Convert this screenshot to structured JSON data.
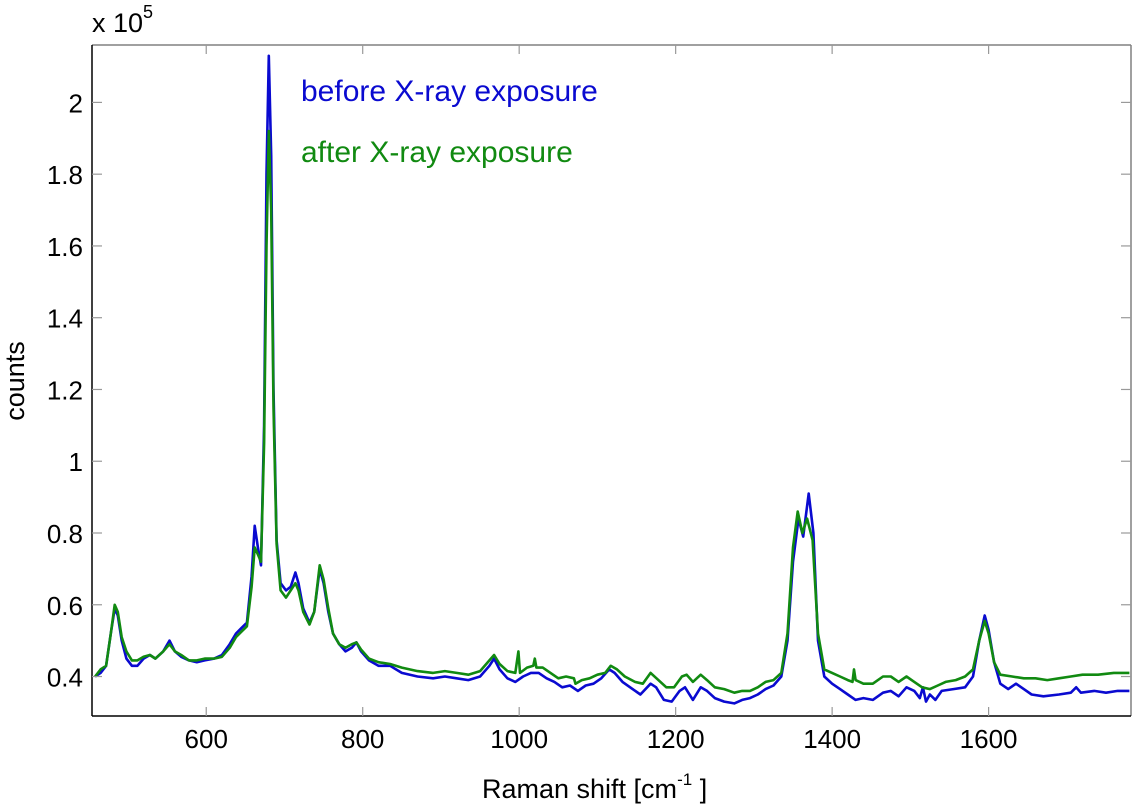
{
  "chart_data": {
    "type": "line",
    "title": "",
    "xlabel": "Raman shift [cm^-1 ]",
    "ylabel": "counts",
    "y_multiplier": "x 10^5",
    "xlim": [
      454,
      1782
    ],
    "ylim": [
      0.29,
      2.16
    ],
    "x_ticks": [
      600,
      800,
      1000,
      1200,
      1400,
      1600
    ],
    "y_ticks": [
      0.4,
      0.6,
      0.8,
      1,
      1.2,
      1.4,
      1.6,
      1.8,
      2
    ],
    "y_tick_labels": [
      "0.4",
      "0.6",
      "0.8",
      "1",
      "1.2",
      "1.4",
      "1.6",
      "1.8",
      "2"
    ],
    "x_tick_labels": [
      "600",
      "800",
      "1000",
      "1200",
      "1400",
      "1600"
    ],
    "grid": false,
    "legend_position": "upper-left-inside",
    "series": [
      {
        "name": "before X-ray exposure",
        "color": "#0a0ad0",
        "points": [
          [
            458,
            0.4
          ],
          [
            465,
            0.41
          ],
          [
            472,
            0.43
          ],
          [
            478,
            0.52
          ],
          [
            483,
            0.59
          ],
          [
            487,
            0.57
          ],
          [
            492,
            0.5
          ],
          [
            498,
            0.45
          ],
          [
            505,
            0.43
          ],
          [
            512,
            0.43
          ],
          [
            520,
            0.45
          ],
          [
            528,
            0.46
          ],
          [
            535,
            0.45
          ],
          [
            545,
            0.47
          ],
          [
            553,
            0.5
          ],
          [
            560,
            0.47
          ],
          [
            568,
            0.455
          ],
          [
            578,
            0.445
          ],
          [
            588,
            0.44
          ],
          [
            598,
            0.445
          ],
          [
            610,
            0.45
          ],
          [
            620,
            0.46
          ],
          [
            630,
            0.49
          ],
          [
            638,
            0.52
          ],
          [
            645,
            0.535
          ],
          [
            652,
            0.55
          ],
          [
            658,
            0.68
          ],
          [
            662,
            0.82
          ],
          [
            666,
            0.76
          ],
          [
            670,
            0.71
          ],
          [
            674,
            1.1
          ],
          [
            677,
            1.8
          ],
          [
            680,
            2.13
          ],
          [
            683,
            1.85
          ],
          [
            686,
            1.2
          ],
          [
            690,
            0.78
          ],
          [
            695,
            0.66
          ],
          [
            702,
            0.64
          ],
          [
            708,
            0.65
          ],
          [
            714,
            0.69
          ],
          [
            718,
            0.66
          ],
          [
            724,
            0.59
          ],
          [
            732,
            0.55
          ],
          [
            738,
            0.58
          ],
          [
            745,
            0.7
          ],
          [
            750,
            0.66
          ],
          [
            756,
            0.58
          ],
          [
            762,
            0.52
          ],
          [
            770,
            0.49
          ],
          [
            778,
            0.47
          ],
          [
            786,
            0.48
          ],
          [
            792,
            0.495
          ],
          [
            798,
            0.47
          ],
          [
            808,
            0.445
          ],
          [
            820,
            0.43
          ],
          [
            835,
            0.43
          ],
          [
            850,
            0.41
          ],
          [
            870,
            0.4
          ],
          [
            890,
            0.395
          ],
          [
            905,
            0.4
          ],
          [
            920,
            0.395
          ],
          [
            935,
            0.39
          ],
          [
            950,
            0.4
          ],
          [
            962,
            0.43
          ],
          [
            968,
            0.45
          ],
          [
            975,
            0.42
          ],
          [
            985,
            0.395
          ],
          [
            995,
            0.385
          ],
          [
            1005,
            0.4
          ],
          [
            1015,
            0.41
          ],
          [
            1025,
            0.41
          ],
          [
            1035,
            0.395
          ],
          [
            1045,
            0.385
          ],
          [
            1055,
            0.37
          ],
          [
            1065,
            0.375
          ],
          [
            1075,
            0.36
          ],
          [
            1085,
            0.375
          ],
          [
            1095,
            0.38
          ],
          [
            1105,
            0.395
          ],
          [
            1115,
            0.42
          ],
          [
            1122,
            0.41
          ],
          [
            1132,
            0.385
          ],
          [
            1145,
            0.365
          ],
          [
            1155,
            0.35
          ],
          [
            1168,
            0.38
          ],
          [
            1175,
            0.37
          ],
          [
            1185,
            0.335
          ],
          [
            1195,
            0.33
          ],
          [
            1205,
            0.36
          ],
          [
            1212,
            0.37
          ],
          [
            1222,
            0.335
          ],
          [
            1232,
            0.37
          ],
          [
            1240,
            0.36
          ],
          [
            1250,
            0.34
          ],
          [
            1262,
            0.33
          ],
          [
            1275,
            0.325
          ],
          [
            1285,
            0.335
          ],
          [
            1295,
            0.34
          ],
          [
            1305,
            0.35
          ],
          [
            1315,
            0.365
          ],
          [
            1325,
            0.375
          ],
          [
            1335,
            0.4
          ],
          [
            1343,
            0.5
          ],
          [
            1350,
            0.72
          ],
          [
            1357,
            0.84
          ],
          [
            1363,
            0.79
          ],
          [
            1370,
            0.91
          ],
          [
            1376,
            0.8
          ],
          [
            1382,
            0.5
          ],
          [
            1390,
            0.4
          ],
          [
            1400,
            0.38
          ],
          [
            1410,
            0.365
          ],
          [
            1420,
            0.35
          ],
          [
            1430,
            0.335
          ],
          [
            1440,
            0.34
          ],
          [
            1452,
            0.335
          ],
          [
            1465,
            0.355
          ],
          [
            1475,
            0.36
          ],
          [
            1485,
            0.345
          ],
          [
            1495,
            0.37
          ],
          [
            1505,
            0.36
          ],
          [
            1512,
            0.34
          ],
          [
            1516,
            0.37
          ],
          [
            1520,
            0.33
          ],
          [
            1525,
            0.35
          ],
          [
            1532,
            0.335
          ],
          [
            1540,
            0.36
          ],
          [
            1555,
            0.365
          ],
          [
            1570,
            0.37
          ],
          [
            1580,
            0.4
          ],
          [
            1588,
            0.5
          ],
          [
            1595,
            0.57
          ],
          [
            1600,
            0.53
          ],
          [
            1607,
            0.44
          ],
          [
            1615,
            0.38
          ],
          [
            1625,
            0.365
          ],
          [
            1635,
            0.38
          ],
          [
            1645,
            0.365
          ],
          [
            1655,
            0.35
          ],
          [
            1670,
            0.345
          ],
          [
            1690,
            0.35
          ],
          [
            1705,
            0.355
          ],
          [
            1712,
            0.37
          ],
          [
            1718,
            0.355
          ],
          [
            1735,
            0.36
          ],
          [
            1750,
            0.355
          ],
          [
            1765,
            0.36
          ],
          [
            1780,
            0.36
          ]
        ]
      },
      {
        "name": "after X-ray exposure",
        "color": "#118a11",
        "points": [
          [
            458,
            0.4
          ],
          [
            465,
            0.42
          ],
          [
            472,
            0.43
          ],
          [
            478,
            0.52
          ],
          [
            483,
            0.6
          ],
          [
            487,
            0.58
          ],
          [
            492,
            0.51
          ],
          [
            498,
            0.47
          ],
          [
            505,
            0.445
          ],
          [
            512,
            0.445
          ],
          [
            520,
            0.455
          ],
          [
            528,
            0.46
          ],
          [
            535,
            0.45
          ],
          [
            545,
            0.47
          ],
          [
            553,
            0.49
          ],
          [
            560,
            0.47
          ],
          [
            568,
            0.46
          ],
          [
            578,
            0.445
          ],
          [
            588,
            0.445
          ],
          [
            598,
            0.45
          ],
          [
            610,
            0.45
          ],
          [
            620,
            0.455
          ],
          [
            630,
            0.48
          ],
          [
            638,
            0.51
          ],
          [
            645,
            0.525
          ],
          [
            652,
            0.54
          ],
          [
            658,
            0.65
          ],
          [
            662,
            0.76
          ],
          [
            666,
            0.74
          ],
          [
            670,
            0.72
          ],
          [
            674,
            1.05
          ],
          [
            677,
            1.6
          ],
          [
            680,
            1.92
          ],
          [
            683,
            1.7
          ],
          [
            686,
            1.15
          ],
          [
            690,
            0.77
          ],
          [
            695,
            0.64
          ],
          [
            702,
            0.62
          ],
          [
            708,
            0.64
          ],
          [
            714,
            0.66
          ],
          [
            718,
            0.64
          ],
          [
            724,
            0.58
          ],
          [
            732,
            0.545
          ],
          [
            738,
            0.58
          ],
          [
            745,
            0.71
          ],
          [
            750,
            0.67
          ],
          [
            756,
            0.59
          ],
          [
            762,
            0.52
          ],
          [
            770,
            0.49
          ],
          [
            778,
            0.48
          ],
          [
            786,
            0.49
          ],
          [
            792,
            0.495
          ],
          [
            798,
            0.475
          ],
          [
            808,
            0.45
          ],
          [
            820,
            0.44
          ],
          [
            835,
            0.435
          ],
          [
            850,
            0.425
          ],
          [
            870,
            0.415
          ],
          [
            890,
            0.41
          ],
          [
            905,
            0.415
          ],
          [
            920,
            0.41
          ],
          [
            935,
            0.405
          ],
          [
            950,
            0.415
          ],
          [
            962,
            0.445
          ],
          [
            968,
            0.46
          ],
          [
            975,
            0.435
          ],
          [
            985,
            0.415
          ],
          [
            995,
            0.41
          ],
          [
            999,
            0.47
          ],
          [
            1001,
            0.41
          ],
          [
            1010,
            0.425
          ],
          [
            1018,
            0.43
          ],
          [
            1020,
            0.45
          ],
          [
            1022,
            0.425
          ],
          [
            1030,
            0.425
          ],
          [
            1040,
            0.41
          ],
          [
            1050,
            0.395
          ],
          [
            1060,
            0.4
          ],
          [
            1070,
            0.395
          ],
          [
            1072,
            0.38
          ],
          [
            1080,
            0.39
          ],
          [
            1090,
            0.395
          ],
          [
            1100,
            0.405
          ],
          [
            1110,
            0.41
          ],
          [
            1117,
            0.43
          ],
          [
            1125,
            0.42
          ],
          [
            1135,
            0.4
          ],
          [
            1148,
            0.385
          ],
          [
            1158,
            0.38
          ],
          [
            1168,
            0.41
          ],
          [
            1178,
            0.39
          ],
          [
            1188,
            0.37
          ],
          [
            1198,
            0.37
          ],
          [
            1208,
            0.4
          ],
          [
            1214,
            0.405
          ],
          [
            1222,
            0.385
          ],
          [
            1232,
            0.405
          ],
          [
            1240,
            0.39
          ],
          [
            1250,
            0.37
          ],
          [
            1262,
            0.365
          ],
          [
            1275,
            0.355
          ],
          [
            1285,
            0.36
          ],
          [
            1295,
            0.36
          ],
          [
            1305,
            0.37
          ],
          [
            1315,
            0.385
          ],
          [
            1325,
            0.39
          ],
          [
            1335,
            0.41
          ],
          [
            1343,
            0.52
          ],
          [
            1350,
            0.76
          ],
          [
            1356,
            0.86
          ],
          [
            1362,
            0.8
          ],
          [
            1368,
            0.84
          ],
          [
            1375,
            0.78
          ],
          [
            1382,
            0.52
          ],
          [
            1390,
            0.42
          ],
          [
            1400,
            0.41
          ],
          [
            1410,
            0.4
          ],
          [
            1420,
            0.39
          ],
          [
            1426,
            0.385
          ],
          [
            1428,
            0.42
          ],
          [
            1430,
            0.39
          ],
          [
            1440,
            0.38
          ],
          [
            1452,
            0.38
          ],
          [
            1465,
            0.4
          ],
          [
            1475,
            0.4
          ],
          [
            1485,
            0.385
          ],
          [
            1495,
            0.4
          ],
          [
            1505,
            0.385
          ],
          [
            1515,
            0.37
          ],
          [
            1525,
            0.365
          ],
          [
            1535,
            0.375
          ],
          [
            1545,
            0.385
          ],
          [
            1558,
            0.39
          ],
          [
            1570,
            0.4
          ],
          [
            1580,
            0.42
          ],
          [
            1588,
            0.5
          ],
          [
            1595,
            0.555
          ],
          [
            1600,
            0.52
          ],
          [
            1607,
            0.44
          ],
          [
            1615,
            0.405
          ],
          [
            1630,
            0.4
          ],
          [
            1645,
            0.395
          ],
          [
            1660,
            0.395
          ],
          [
            1675,
            0.39
          ],
          [
            1690,
            0.395
          ],
          [
            1705,
            0.4
          ],
          [
            1720,
            0.405
          ],
          [
            1740,
            0.405
          ],
          [
            1760,
            0.41
          ],
          [
            1780,
            0.41
          ]
        ]
      }
    ]
  },
  "plot": {
    "y_multiplier_base": "x 10",
    "y_multiplier_exp": "5",
    "xlabel_main": "Raman shift [cm",
    "xlabel_sup": "-1",
    "xlabel_end": " ]",
    "ylabel": "counts",
    "legend": [
      {
        "label": "before X-ray exposure",
        "color": "#0a0ad0"
      },
      {
        "label": "after X-ray exposure",
        "color": "#118a11"
      }
    ]
  }
}
